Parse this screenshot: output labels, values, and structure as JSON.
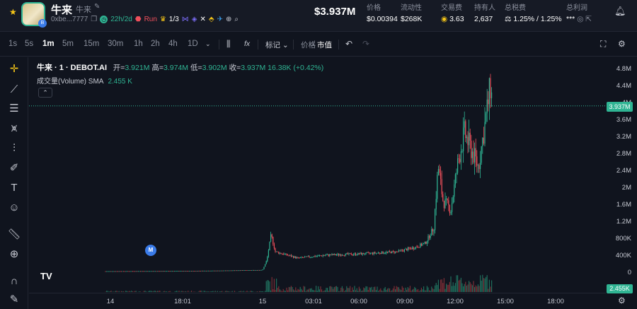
{
  "header": {
    "token_name": "牛来",
    "token_sub": "牛来",
    "address": "0xbe...7777",
    "age": "22h/2d",
    "run_label": "Run",
    "holders_ratio": "1/3",
    "price_mc": "$3.937M",
    "stats": [
      {
        "label": "价格",
        "value": "$0.00394"
      },
      {
        "label": "流动性",
        "value": "$268K"
      },
      {
        "label": "交易费",
        "value": "3.63"
      },
      {
        "label": "持有人",
        "value": "2,637"
      },
      {
        "label": "总税费",
        "value": "1.25% / 1.25%"
      },
      {
        "label": "总利润",
        "value": "***"
      }
    ]
  },
  "toolbar": {
    "timeframes": [
      "1s",
      "5s",
      "1m",
      "5m",
      "15m",
      "30m",
      "1h",
      "2h",
      "4h",
      "1D"
    ],
    "active_timeframe": "1m",
    "fx_label": "fx",
    "mark_label": "标记",
    "price_label": "价格",
    "mc_label": "市值"
  },
  "legend": {
    "symbol": "牛来 · 1 · DEBOT.AI",
    "open_k": "开=",
    "open_v": "3.921M",
    "high_k": "高=",
    "high_v": "3.974M",
    "low_k": "低=",
    "low_v": "3.902M",
    "close_k": "收=",
    "close_v": "3.937M",
    "change": "16.38K (+0.42%)",
    "volume_label": "成交量(Volume) SMA",
    "volume_value": "2.455 K"
  },
  "current_price_label": "3.937M",
  "volume_label_axis": "2.455K",
  "marker_label": "M",
  "tv_logo": "TV",
  "chart_data": {
    "type": "candlestick",
    "y_ticks": [
      "4.8M",
      "4.4M",
      "4M",
      "3.6M",
      "3.2M",
      "2.8M",
      "2.4M",
      "2M",
      "1.6M",
      "1.2M",
      "800K",
      "400K",
      "0"
    ],
    "x_ticks": [
      "14",
      "18:01",
      "15",
      "03:01",
      "06:00",
      "09:00",
      "12:00",
      "15:00",
      "18:00"
    ],
    "ylim": [
      0,
      4800000
    ],
    "current": 3937000,
    "series_close_in_thousands": [
      40,
      45,
      48,
      50,
      52,
      55,
      58,
      60,
      62,
      65,
      68,
      70,
      300,
      900,
      500,
      400,
      350,
      380,
      420,
      400,
      450,
      470,
      480,
      500,
      520,
      560,
      600,
      700,
      800,
      950,
      1100,
      2500,
      1700,
      1500,
      2600,
      3300,
      2900,
      2700,
      2500,
      3600,
      4400,
      3937
    ]
  },
  "colors": {
    "up": "#2fb493",
    "down": "#ef4f5b",
    "bg": "#10141e",
    "accent": "#f5c518"
  }
}
